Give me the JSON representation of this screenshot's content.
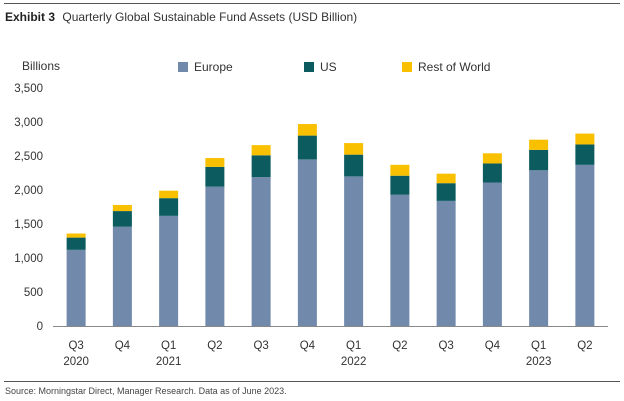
{
  "exhibit_label": "Exhibit 3",
  "title": "Quarterly Global Sustainable Fund Assets (USD Billion)",
  "source": "Source: Morningstar Direct, Manager Research. Data as of June 2023.",
  "colors": {
    "Europe": "#7189ab",
    "US": "#0b5b5f",
    "Rest of World": "#f9c000",
    "axis": "#888888",
    "text": "#333333"
  },
  "chart_data": {
    "type": "bar",
    "stacked": true,
    "ylabel": "Billions",
    "ylim": [
      0,
      3500
    ],
    "yticks": [
      0,
      500,
      1000,
      1500,
      2000,
      2500,
      3000,
      3500
    ],
    "ytick_labels": [
      "0",
      "500",
      "1,000",
      "1,500",
      "2,000",
      "2,500",
      "3,000",
      "3,500"
    ],
    "grid": false,
    "legend_position": "top",
    "categories": [
      "Q3 2020",
      "Q4 2020",
      "Q1 2021",
      "Q2 2021",
      "Q3 2021",
      "Q4 2021",
      "Q1 2022",
      "Q2 2022",
      "Q3 2022",
      "Q4 2022",
      "Q1 2023",
      "Q2 2023"
    ],
    "tick_labels": [
      [
        "Q3",
        "2020"
      ],
      [
        "Q4",
        ""
      ],
      [
        "Q1",
        "2021"
      ],
      [
        "Q2",
        ""
      ],
      [
        "Q3",
        ""
      ],
      [
        "Q4",
        ""
      ],
      [
        "Q1",
        "2022"
      ],
      [
        "Q2",
        ""
      ],
      [
        "Q3",
        ""
      ],
      [
        "Q4",
        ""
      ],
      [
        "Q1",
        "2023"
      ],
      [
        "Q2",
        ""
      ]
    ],
    "series": [
      {
        "name": "Europe",
        "values": [
          1120,
          1460,
          1620,
          2050,
          2190,
          2450,
          2200,
          1930,
          1840,
          2110,
          2290,
          2370
        ]
      },
      {
        "name": "US",
        "values": [
          180,
          230,
          260,
          290,
          320,
          350,
          320,
          280,
          260,
          280,
          300,
          300
        ]
      },
      {
        "name": "Rest of World",
        "values": [
          60,
          90,
          110,
          130,
          150,
          170,
          170,
          160,
          140,
          150,
          150,
          160
        ]
      }
    ]
  }
}
